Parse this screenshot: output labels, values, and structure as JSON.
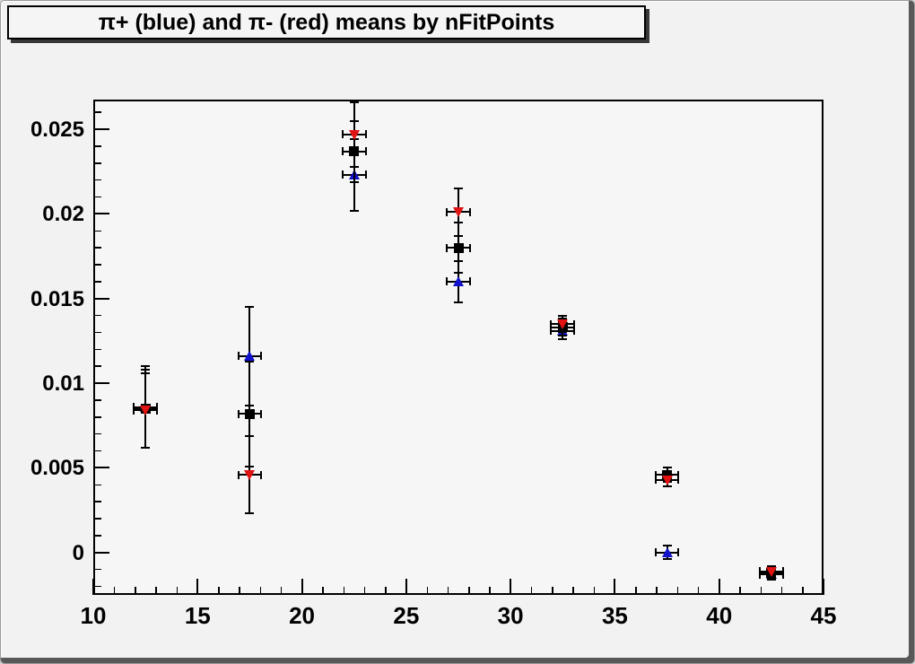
{
  "title": {
    "text": "π+ (blue) and π- (red) means by nFitPoints"
  },
  "colors": {
    "canvas_bg": "#f2f2f2",
    "frame_bg": "#f6f6f6",
    "axis": "#000000",
    "pi_plus_blue": "#1212cc",
    "pi_minus_red": "#e01212",
    "mean_black": "#000000"
  },
  "chart_data": {
    "type": "scatter",
    "title": "π+ (blue) and π- (red) means by nFitPoints",
    "xlabel": "",
    "ylabel": "",
    "grid": false,
    "legend": null,
    "xlim": [
      10,
      45
    ],
    "ylim": [
      -0.0025,
      0.02675
    ],
    "x_major_ticks": [
      10,
      15,
      20,
      25,
      30,
      35,
      40,
      45
    ],
    "x_minor_step": 1,
    "y_major_ticks": [
      0,
      0.005,
      0.01,
      0.015,
      0.02,
      0.025
    ],
    "y_tick_labels": [
      "0",
      "0.005",
      "0.01",
      "0.015",
      "0.02",
      "0.025"
    ],
    "y_minor_step": 0.001,
    "x": [
      12.5,
      17.5,
      22.5,
      27.5,
      32.5,
      37.5,
      42.5
    ],
    "xerr": 0.55,
    "series": [
      {
        "name": "pi-plus",
        "label": "pi+ (blue)",
        "marker": "triangle-up",
        "color": "#1212cc",
        "values": [
          0.0086,
          0.0116,
          0.0223,
          0.016,
          0.0131,
          0.0,
          -0.0013
        ],
        "yerr": [
          0.0024,
          0.0029,
          0.0021,
          0.0012,
          0.0005,
          0.0004,
          0.0003
        ]
      },
      {
        "name": "mean",
        "label": "mean (black)",
        "marker": "square",
        "color": "#000000",
        "values": [
          0.0085,
          0.0082,
          0.0237,
          0.018,
          0.0133,
          0.0046,
          -0.0012
        ],
        "yerr": [
          0.0023,
          0.0031,
          0.0018,
          0.0015,
          0.0005,
          0.0004,
          0.0003
        ]
      },
      {
        "name": "pi-minus",
        "label": "pi- (red)",
        "marker": "triangle-down",
        "color": "#e01212",
        "values": [
          0.0084,
          0.0046,
          0.0247,
          0.0201,
          0.0135,
          0.0043,
          -0.0011
        ],
        "yerr": [
          0.0022,
          0.0023,
          0.0019,
          0.0014,
          0.0005,
          0.0004,
          0.0003
        ]
      }
    ]
  }
}
